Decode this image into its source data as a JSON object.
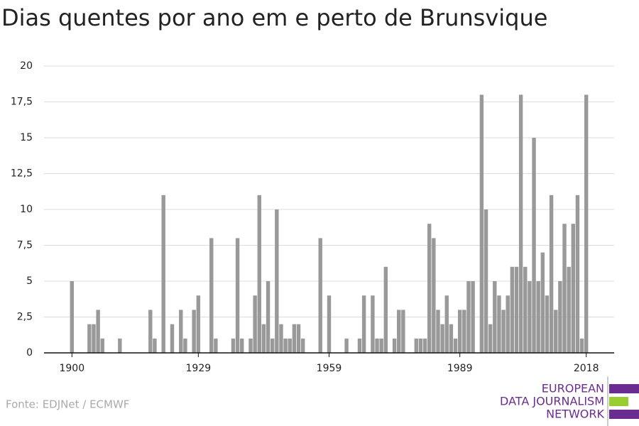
{
  "chart_data": {
    "type": "bar",
    "title": "Dias quentes por ano em e perto de Brunsvique",
    "source": "Fonte: EDJNet / ECMWF",
    "logo": [
      "EUROPEAN",
      "DATA JOURNALISM",
      "NETWORK"
    ],
    "color": "#999999",
    "grid": true,
    "x": [
      1900,
      1901,
      1902,
      1903,
      1904,
      1905,
      1906,
      1907,
      1908,
      1909,
      1910,
      1911,
      1912,
      1913,
      1914,
      1915,
      1916,
      1917,
      1918,
      1919,
      1920,
      1921,
      1922,
      1923,
      1924,
      1925,
      1926,
      1927,
      1928,
      1929,
      1930,
      1931,
      1932,
      1933,
      1934,
      1935,
      1936,
      1937,
      1938,
      1939,
      1940,
      1941,
      1942,
      1943,
      1944,
      1945,
      1946,
      1947,
      1948,
      1949,
      1950,
      1951,
      1952,
      1953,
      1954,
      1955,
      1956,
      1957,
      1958,
      1959,
      1960,
      1961,
      1962,
      1963,
      1964,
      1965,
      1966,
      1967,
      1968,
      1969,
      1970,
      1971,
      1972,
      1973,
      1974,
      1975,
      1976,
      1977,
      1978,
      1979,
      1980,
      1981,
      1982,
      1983,
      1984,
      1985,
      1986,
      1987,
      1988,
      1989,
      1990,
      1991,
      1992,
      1993,
      1994,
      1995,
      1996,
      1997,
      1998,
      1999,
      2000,
      2001,
      2002,
      2003,
      2004,
      2005,
      2006,
      2007,
      2008,
      2009,
      2010,
      2011,
      2012,
      2013,
      2014,
      2015,
      2016,
      2017,
      2018
    ],
    "values": [
      5,
      0,
      0,
      0,
      2,
      2,
      3,
      1,
      0,
      0,
      0,
      1,
      0,
      0,
      0,
      0,
      0,
      0,
      3,
      1,
      0,
      11,
      0,
      2,
      0,
      3,
      1,
      0,
      3,
      4,
      0,
      0,
      8,
      1,
      0,
      0,
      0,
      1,
      8,
      1,
      0,
      1,
      4,
      11,
      2,
      5,
      1,
      10,
      2,
      1,
      1,
      2,
      2,
      1,
      0,
      0,
      0,
      8,
      0,
      4,
      0,
      0,
      0,
      1,
      0,
      0,
      1,
      4,
      0,
      4,
      1,
      1,
      6,
      0,
      1,
      3,
      3,
      0,
      0,
      1,
      1,
      1,
      9,
      8,
      3,
      2,
      4,
      2,
      1,
      3,
      3,
      5,
      5,
      0,
      18,
      10,
      2,
      5,
      4,
      3,
      4,
      6,
      6,
      18,
      6,
      5,
      15,
      5,
      7,
      4,
      11,
      3,
      5,
      9,
      6,
      9,
      11,
      1,
      18
    ],
    "xlim": [
      1893.6,
      2024.4
    ],
    "xticks": [
      1900,
      1929,
      1959,
      1989,
      2018
    ],
    "ylim": [
      0,
      20
    ],
    "yticks": [
      0,
      {
        "value": 2.5,
        "label": "2,5"
      },
      5,
      {
        "value": 7.5,
        "label": "7,5"
      },
      10,
      {
        "value": 12.5,
        "label": "12,5"
      },
      15,
      {
        "value": 17.5,
        "label": "17,5"
      },
      20
    ]
  }
}
